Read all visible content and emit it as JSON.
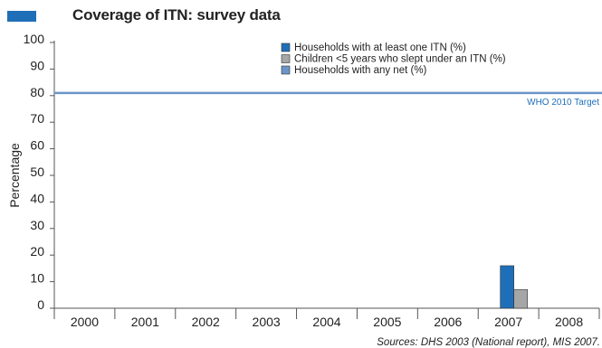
{
  "colors": {
    "accent": "#1f6fb8",
    "series_itn": "#1f6fb8",
    "series_children": "#a6a6a6",
    "series_any_net": "#6b95c9",
    "target_line": "#6b95c9",
    "axis": "#555555"
  },
  "chart_data": {
    "type": "bar",
    "title": "Coverage of ITN: survey data",
    "ylabel": "Percentage",
    "xlabel": "",
    "categories": [
      "2000",
      "2001",
      "2002",
      "2003",
      "2004",
      "2005",
      "2006",
      "2007",
      "2008"
    ],
    "ylim": [
      0,
      100
    ],
    "yticks": [
      0,
      10,
      20,
      30,
      40,
      50,
      60,
      70,
      80,
      90,
      100
    ],
    "series": [
      {
        "name": "Households with at least one ITN (%)",
        "color": "#1f6fb8",
        "values": [
          null,
          null,
          null,
          null,
          null,
          null,
          null,
          16,
          null
        ]
      },
      {
        "name": "Children <5 years who slept under an ITN (%)",
        "color": "#a6a6a6",
        "values": [
          null,
          null,
          null,
          null,
          null,
          null,
          null,
          7,
          null
        ]
      },
      {
        "name": "Households with any net (%)",
        "color": "#6b95c9",
        "values": [
          null,
          null,
          null,
          null,
          null,
          null,
          null,
          null,
          null
        ]
      }
    ],
    "target": {
      "value": 81,
      "label": "WHO 2010 Target"
    },
    "legend_position": "top-center",
    "grid": false,
    "source": "Sources: DHS 2003 (National report), MIS 2007."
  }
}
